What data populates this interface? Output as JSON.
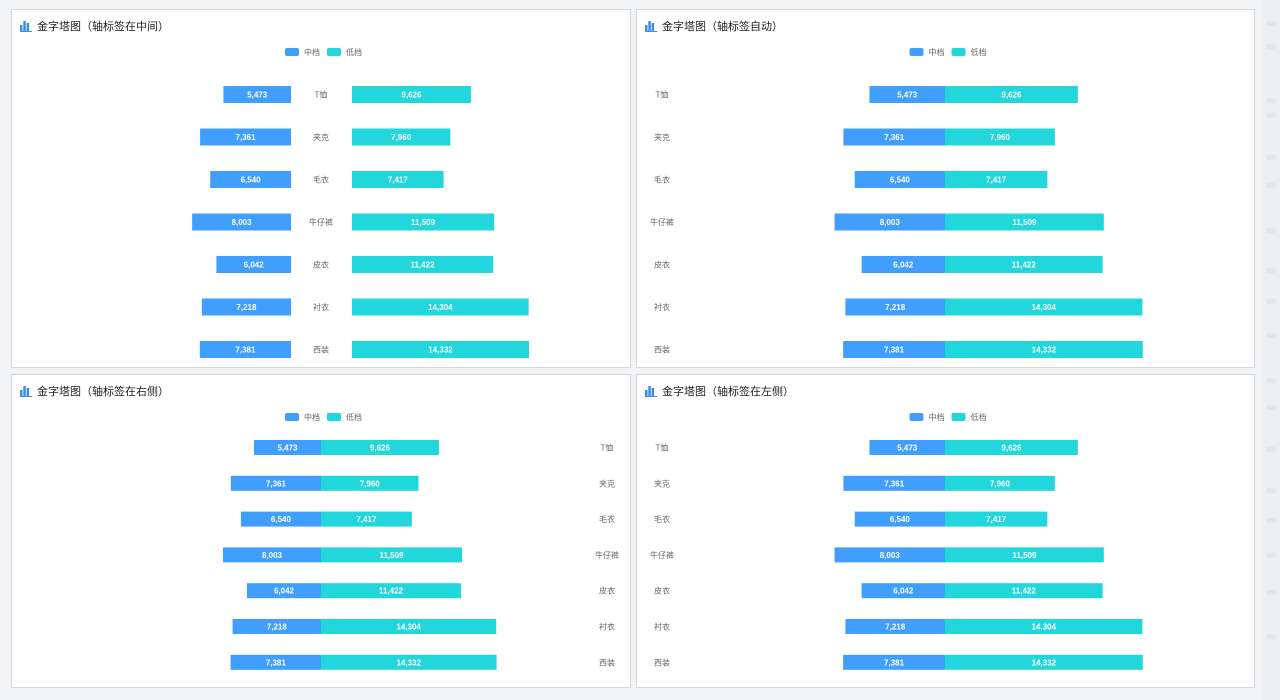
{
  "colors": {
    "mid": "#409eff",
    "low": "#22d7dc",
    "axis_text": "#666666"
  },
  "panels": [
    {
      "title": "金字塔图（轴标签在中间）",
      "label_position": "middle"
    },
    {
      "title": "金字塔图（轴标签自动）",
      "label_position": "auto"
    },
    {
      "title": "金字塔图（轴标签在右侧）",
      "label_position": "right"
    },
    {
      "title": "金字塔图（轴标签在左侧）",
      "label_position": "left"
    }
  ],
  "chart_data": {
    "type": "bar",
    "subtype": "pyramid",
    "categories": [
      "T恤",
      "夹克",
      "毛衣",
      "牛仔裤",
      "皮衣",
      "衬衣",
      "西装"
    ],
    "series": [
      {
        "name": "中档",
        "values": [
          5473,
          7361,
          6540,
          8003,
          6042,
          7218,
          7381
        ]
      },
      {
        "name": "低档",
        "values": [
          9626,
          7960,
          7417,
          11509,
          11422,
          14304,
          14332
        ]
      }
    ],
    "legend_position": "top-center"
  }
}
